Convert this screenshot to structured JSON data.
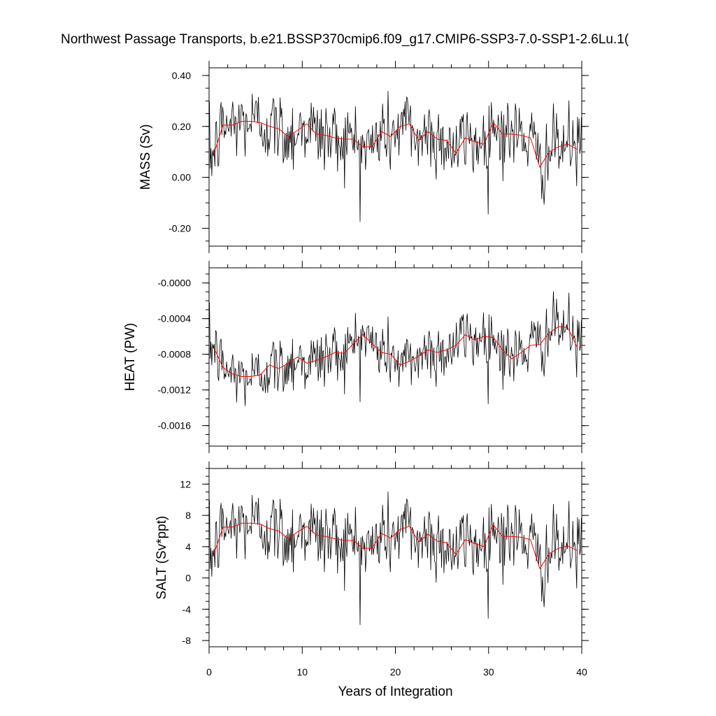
{
  "chart_data": {
    "type": "line",
    "title": "Northwest Passage Transports, b.e21.BSSP370cmip6.f09_g17.CMIP6-SSP3-7.0-SSP1-2.6Lu.1(",
    "xlabel": "Years of Integration",
    "xlim": [
      0,
      40
    ],
    "xticks": [
      0,
      10,
      20,
      30,
      40
    ],
    "xtick_labels": [
      "0",
      "10",
      "20",
      "30",
      "40"
    ],
    "panels": [
      {
        "ylabel": "MASS (Sv)",
        "ylim": [
          -0.27,
          0.43
        ],
        "yticks": [
          0.4,
          0.2,
          0.0,
          -0.2
        ],
        "ytick_labels": [
          "0.40",
          "0.20",
          "0.00",
          "-0.20"
        ],
        "monthly_base": 0.16,
        "monthly_noise": 0.075,
        "annual_x": [
          0.5,
          1.5,
          2.5,
          3.5,
          4.5,
          5.5,
          6.5,
          7.5,
          8.5,
          9.5,
          10.5,
          11.5,
          12.5,
          13.5,
          14.5,
          15.5,
          16.5,
          17.5,
          18.5,
          19.5,
          20.5,
          21.5,
          22.5,
          23.5,
          24.5,
          25.5,
          26.5,
          27.5,
          28.5,
          29.5,
          30.5,
          31.5,
          32.5,
          33.5,
          34.5,
          35.5,
          36.5,
          37.5,
          38.5,
          39.5
        ],
        "annual_y": [
          0.09,
          0.205,
          0.205,
          0.22,
          0.22,
          0.215,
          0.2,
          0.19,
          0.16,
          0.185,
          0.21,
          0.17,
          0.165,
          0.155,
          0.15,
          0.15,
          0.12,
          0.12,
          0.18,
          0.16,
          0.2,
          0.21,
          0.145,
          0.18,
          0.15,
          0.145,
          0.095,
          0.155,
          0.14,
          0.13,
          0.215,
          0.17,
          0.17,
          0.165,
          0.155,
          0.04,
          0.1,
          0.12,
          0.13,
          0.11
        ]
      },
      {
        "ylabel": "HEAT (PW)",
        "ylim": [
          -0.00183,
          0.00017
        ],
        "yticks": [
          0.0,
          -0.0004,
          -0.0008,
          -0.0012,
          -0.0016
        ],
        "ytick_labels": [
          "-0.0000",
          "-0.0004",
          "-0.0008",
          "-0.0012",
          "-0.0016"
        ],
        "monthly_base": 0.0,
        "monthly_noise": 0.00018,
        "annual_x": [
          0.5,
          1.5,
          2.5,
          3.5,
          4.5,
          5.5,
          6.5,
          7.5,
          8.5,
          9.5,
          10.5,
          11.5,
          12.5,
          13.5,
          14.5,
          15.5,
          16.5,
          17.5,
          18.5,
          19.5,
          20.5,
          21.5,
          22.5,
          23.5,
          24.5,
          25.5,
          26.5,
          27.5,
          28.5,
          29.5,
          30.5,
          31.5,
          32.5,
          33.5,
          34.5,
          35.5,
          36.5,
          37.5,
          38.5,
          39.5
        ],
        "annual_y": [
          -0.00072,
          -0.00095,
          -0.00102,
          -0.00105,
          -0.00105,
          -0.00103,
          -0.00092,
          -0.00096,
          -0.0009,
          -0.00083,
          -0.0009,
          -0.00087,
          -0.00083,
          -0.00078,
          -0.00079,
          -0.00068,
          -0.00058,
          -0.00068,
          -0.00078,
          -0.0008,
          -0.00092,
          -0.00088,
          -0.00082,
          -0.00075,
          -0.00078,
          -0.00075,
          -0.0007,
          -0.00058,
          -0.00064,
          -0.0006,
          -0.00061,
          -0.00075,
          -0.00085,
          -0.00078,
          -0.0007,
          -0.00069,
          -0.00056,
          -0.00049,
          -0.0005,
          -0.00072
        ]
      },
      {
        "ylabel": "SALT (Sv*ppt)",
        "ylim": [
          -8.8,
          14.0
        ],
        "yticks": [
          12,
          8,
          4,
          0,
          -4,
          -8
        ],
        "ytick_labels": [
          "12",
          "8",
          "4",
          "0",
          "-4",
          "-8"
        ],
        "monthly_base": 0.0,
        "monthly_noise": 2.5,
        "annual_x": [
          0.5,
          1.5,
          2.5,
          3.5,
          4.5,
          5.5,
          6.5,
          7.5,
          8.5,
          9.5,
          10.5,
          11.5,
          12.5,
          13.5,
          14.5,
          15.5,
          16.5,
          17.5,
          18.5,
          19.5,
          20.5,
          21.5,
          22.5,
          23.5,
          24.5,
          25.5,
          26.5,
          27.5,
          28.5,
          29.5,
          30.5,
          31.5,
          32.5,
          33.5,
          34.5,
          35.5,
          36.5,
          37.5,
          38.5,
          39.5
        ],
        "annual_y": [
          3.0,
          6.5,
          6.5,
          7.0,
          7.0,
          6.9,
          6.3,
          6.0,
          5.0,
          5.9,
          6.6,
          5.5,
          5.3,
          5.0,
          4.8,
          4.8,
          3.8,
          3.8,
          5.7,
          5.1,
          6.2,
          6.6,
          4.6,
          5.6,
          4.7,
          4.5,
          3.0,
          4.9,
          4.4,
          4.0,
          6.8,
          5.3,
          5.3,
          5.2,
          4.9,
          1.2,
          3.1,
          3.8,
          4.1,
          3.5
        ]
      }
    ],
    "series": [
      {
        "style": "monthly",
        "color": "#000000"
      },
      {
        "style": "annual",
        "color": "#ff0000"
      }
    ]
  }
}
